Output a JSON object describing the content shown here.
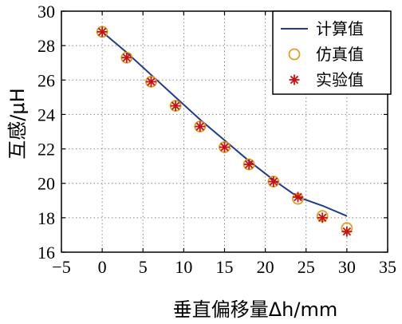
{
  "chart_data": {
    "type": "line",
    "xlabel": "垂直偏移量Δh/mm",
    "ylabel": "互感/μH",
    "xlim": [
      -5,
      35
    ],
    "ylim": [
      16,
      30
    ],
    "x_ticks": [
      -5,
      0,
      5,
      10,
      15,
      20,
      25,
      30,
      35
    ],
    "y_ticks": [
      16,
      18,
      20,
      22,
      24,
      26,
      28,
      30
    ],
    "grid": true,
    "legend_position": "top-right",
    "series": [
      {
        "name": "计算值",
        "style": "line",
        "color": "#1f3b8c",
        "x": [
          0,
          3,
          6,
          9,
          12,
          15,
          18,
          21,
          24,
          27,
          30
        ],
        "y": [
          28.8,
          27.6,
          26.3,
          25.0,
          23.7,
          22.5,
          21.3,
          20.2,
          19.2,
          18.7,
          18.1
        ]
      },
      {
        "name": "仿真值",
        "style": "circle",
        "color": "#e0a020",
        "x": [
          0,
          3,
          6,
          9,
          12,
          15,
          18,
          21,
          24,
          27,
          30
        ],
        "y": [
          28.8,
          27.3,
          25.9,
          24.5,
          23.3,
          22.1,
          21.1,
          20.1,
          19.1,
          18.1,
          17.4
        ]
      },
      {
        "name": "实验值",
        "style": "asterisk",
        "color": "#cc1010",
        "x": [
          0,
          3,
          6,
          9,
          12,
          15,
          18,
          21,
          24,
          27,
          30
        ],
        "y": [
          28.8,
          27.3,
          25.9,
          24.5,
          23.3,
          22.1,
          21.1,
          20.1,
          19.2,
          18.0,
          17.2
        ]
      }
    ]
  }
}
